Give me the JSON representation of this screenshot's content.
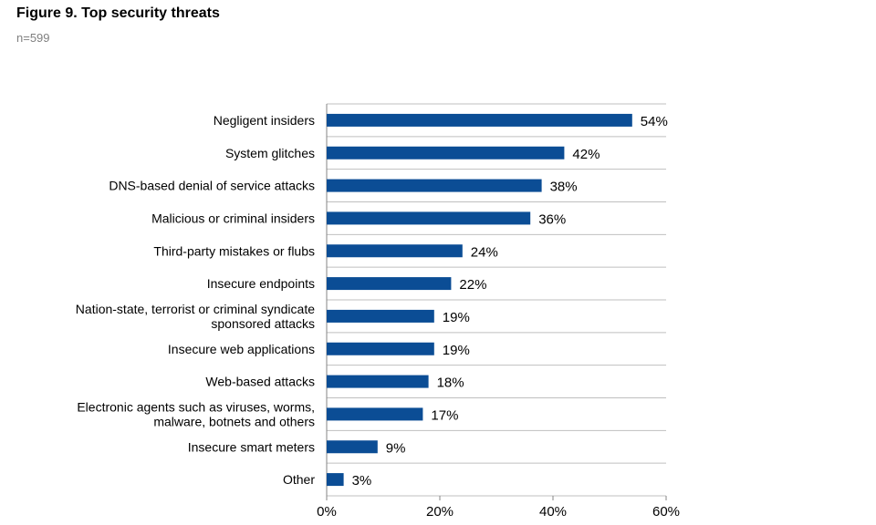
{
  "title": "Figure 9. Top security threats",
  "subtitle": "n=599",
  "chart_data": {
    "type": "bar",
    "orientation": "horizontal",
    "categories": [
      "Negligent insiders",
      "System glitches",
      "DNS-based denial of service attacks",
      "Malicious or criminal insiders",
      "Third-party mistakes or flubs",
      "Insecure endpoints",
      "Nation-state, terrorist or criminal syndicate sponsored attacks",
      "Insecure web applications",
      "Web-based attacks",
      "Electronic agents such as viruses, worms, malware, botnets and others",
      "Insecure smart meters",
      "Other"
    ],
    "category_lines": [
      [
        "Negligent insiders"
      ],
      [
        "System glitches"
      ],
      [
        "DNS-based denial of service attacks"
      ],
      [
        "Malicious or criminal insiders"
      ],
      [
        "Third-party mistakes or flubs"
      ],
      [
        "Insecure endpoints"
      ],
      [
        "Nation-state, terrorist or criminal syndicate",
        "sponsored attacks"
      ],
      [
        "Insecure web applications"
      ],
      [
        "Web-based attacks"
      ],
      [
        "Electronic agents such as viruses, worms,",
        "malware, botnets and others"
      ],
      [
        "Insecure smart meters"
      ],
      [
        "Other"
      ]
    ],
    "values": [
      54,
      42,
      38,
      36,
      24,
      22,
      19,
      19,
      18,
      17,
      9,
      3
    ],
    "value_labels": [
      "54%",
      "42%",
      "38%",
      "36%",
      "24%",
      "22%",
      "19%",
      "19%",
      "18%",
      "17%",
      "9%",
      "3%"
    ],
    "xlim": [
      0,
      60
    ],
    "xticks": [
      0,
      20,
      40,
      60
    ],
    "xtick_labels": [
      "0%",
      "20%",
      "40%",
      "60%"
    ],
    "bar_color": "#0b4d95",
    "grid": true
  }
}
